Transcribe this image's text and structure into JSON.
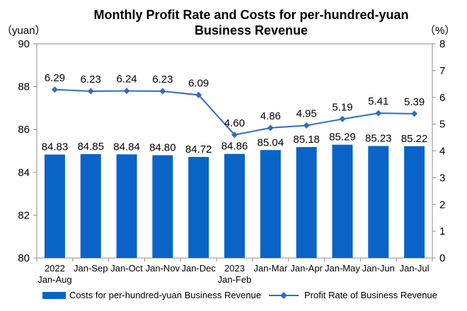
{
  "chart_data": {
    "type": "bar",
    "title_line1": "Monthly Profit Rate and Costs for per-hundred-yuan",
    "title_line2": "Business Revenue",
    "left_unit": "（yuan）",
    "right_unit": "（%）",
    "categories": [
      [
        "2022",
        "Jan-Aug"
      ],
      [
        "Jan-Sep"
      ],
      [
        "Jan-Oct"
      ],
      [
        "Jan-Nov"
      ],
      [
        "Jan-Dec"
      ],
      [
        "2023",
        "Jan-Feb"
      ],
      [
        "Jan-Mar"
      ],
      [
        "Jan-Apr"
      ],
      [
        "Jan-May"
      ],
      [
        "Jan-Jun"
      ],
      [
        "Jan-Jul"
      ]
    ],
    "series": [
      {
        "name": "Costs for per-hundred-yuan Business Revenue",
        "type": "bar",
        "axis": "left",
        "color": "#0a64c8",
        "values": [
          84.83,
          84.85,
          84.84,
          84.8,
          84.72,
          84.86,
          85.04,
          85.18,
          85.29,
          85.23,
          85.22
        ],
        "labels": [
          "84.83",
          "84.85",
          "84.84",
          "84.80",
          "84.72",
          "84.86",
          "85.04",
          "85.18",
          "85.29",
          "85.23",
          "85.22"
        ]
      },
      {
        "name": "Profit Rate of Business Revenue",
        "type": "line",
        "axis": "right",
        "color": "#2e6dc4",
        "marker": "diamond",
        "values": [
          6.29,
          6.23,
          6.24,
          6.23,
          6.09,
          4.6,
          4.86,
          4.95,
          5.19,
          5.41,
          5.39
        ],
        "labels": [
          "6.29",
          "6.23",
          "6.24",
          "6.23",
          "6.09",
          "4.60",
          "4.86",
          "4.95",
          "5.19",
          "5.41",
          "5.39"
        ]
      }
    ],
    "left_axis": {
      "min": 80,
      "max": 90,
      "ticks": [
        "80",
        "82",
        "84",
        "86",
        "88",
        "90"
      ]
    },
    "right_axis": {
      "min": 0,
      "max": 8,
      "ticks": [
        "0",
        "1",
        "2",
        "3",
        "4",
        "5",
        "6",
        "7",
        "8"
      ]
    },
    "grid": false,
    "legend_position": "bottom"
  }
}
